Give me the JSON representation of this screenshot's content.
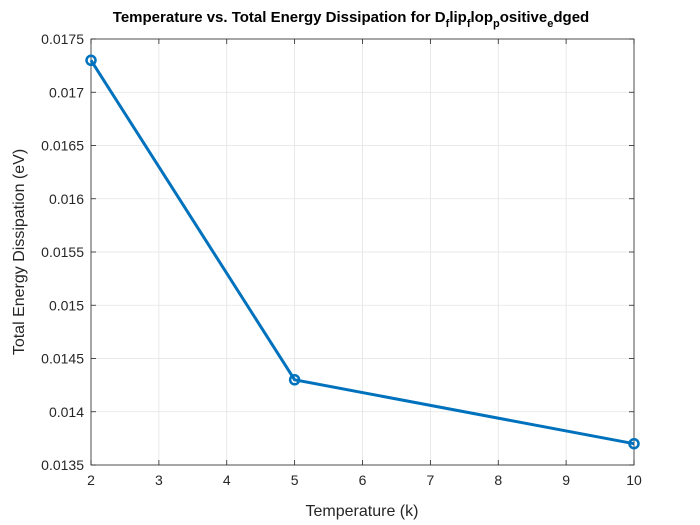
{
  "chart_data": {
    "type": "line",
    "title": {
      "parts": [
        {
          "text": "Temperature vs. Total Energy Dissipation for D",
          "sub": false
        },
        {
          "text": "f",
          "sub": true
        },
        {
          "text": "lip",
          "sub": false
        },
        {
          "text": "f",
          "sub": true
        },
        {
          "text": "lop",
          "sub": false
        },
        {
          "text": "p",
          "sub": true
        },
        {
          "text": "ositive",
          "sub": false
        },
        {
          "text": "e",
          "sub": true
        },
        {
          "text": "dged",
          "sub": false
        }
      ]
    },
    "xlabel": "Temperature (k)",
    "ylabel": "Total Energy Dissipation (eV)",
    "xlim": [
      2,
      10
    ],
    "ylim": [
      0.0135,
      0.0175
    ],
    "xticks": [
      2,
      3,
      4,
      5,
      6,
      7,
      8,
      9,
      10
    ],
    "xtick_labels": [
      "2",
      "3",
      "4",
      "5",
      "6",
      "7",
      "8",
      "9",
      "10"
    ],
    "yticks": [
      0.0135,
      0.014,
      0.0145,
      0.015,
      0.0155,
      0.016,
      0.0165,
      0.017,
      0.0175
    ],
    "ytick_labels": [
      "0.0135",
      "0.014",
      "0.0145",
      "0.015",
      "0.0155",
      "0.016",
      "0.0165",
      "0.017",
      "0.0175"
    ],
    "grid": true,
    "series": [
      {
        "x": [
          2,
          5,
          10
        ],
        "y": [
          0.0173,
          0.0143,
          0.0137
        ],
        "color": "#0072BD",
        "marker": "circle"
      }
    ]
  }
}
